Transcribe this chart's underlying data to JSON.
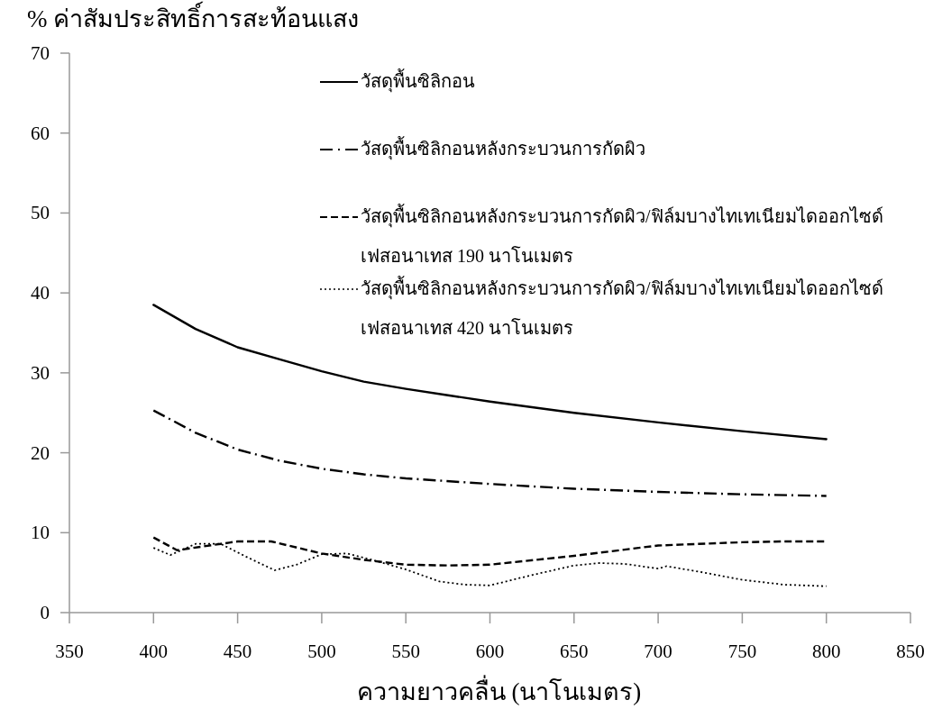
{
  "chart_data": {
    "type": "line",
    "ylabel": "% ค่าสัมประสิทธิ์การสะท้อนแสง",
    "xlabel": "ความยาวคลื่น (นาโนเมตร)",
    "xlim": [
      350,
      850
    ],
    "xticks": [
      350,
      400,
      450,
      500,
      550,
      600,
      650,
      700,
      750,
      800,
      850
    ],
    "ylim": [
      0,
      70
    ],
    "yticks": [
      0,
      10,
      20,
      30,
      40,
      50,
      60,
      70
    ],
    "grid": false,
    "legend": "top right",
    "marker": "none",
    "series": [
      {
        "name": "วัสดุพื้นซิลิกอน",
        "color": "#000000",
        "line_style": "solid",
        "x": [
          400,
          425,
          450,
          475,
          500,
          525,
          550,
          575,
          600,
          650,
          700,
          750,
          800
        ],
        "values": [
          38.5,
          35.5,
          33.2,
          31.7,
          30.2,
          28.9,
          28.0,
          27.2,
          26.4,
          25.0,
          23.8,
          22.7,
          21.7
        ]
      },
      {
        "name": "วัสดุพื้นซิลิกอนหลังกระบวนการกัดผิว",
        "color": "#000000",
        "line_style": "dashdot",
        "x": [
          400,
          425,
          450,
          475,
          500,
          525,
          550,
          600,
          650,
          700,
          750,
          800
        ],
        "values": [
          25.3,
          22.5,
          20.4,
          19.0,
          18.0,
          17.3,
          16.8,
          16.1,
          15.5,
          15.1,
          14.8,
          14.6
        ]
      },
      {
        "name": "วัสดุพื้นซิลิกอนหลังกระบวนการกัดผิว/ฟิล์มบางไทเทเนียมไดออกไซด์ เฟสอนาเทส 190 นาโนเมตร",
        "color": "#000000",
        "line_style": "dashed",
        "x": [
          400,
          414,
          440,
          450,
          470,
          500,
          525,
          550,
          575,
          600,
          650,
          700,
          750,
          775,
          800
        ],
        "values": [
          9.4,
          7.8,
          8.6,
          8.9,
          8.9,
          7.4,
          6.6,
          6.0,
          5.9,
          6.0,
          7.1,
          8.4,
          8.8,
          8.9,
          8.9
        ]
      },
      {
        "name": "วัสดุพื้นซิลิกอนหลังกระบวนการกัดผิว/ฟิล์มบางไทเทเนียมไดออกไซด์ เฟสอนาเทส 420 นาโนเมตร",
        "color": "#000000",
        "line_style": "dotted",
        "x": [
          400,
          410,
          425,
          440,
          455,
          472,
          485,
          500,
          515,
          530,
          550,
          570,
          585,
          600,
          625,
          650,
          665,
          680,
          700,
          705,
          725,
          750,
          775,
          800
        ],
        "values": [
          8.1,
          7.2,
          8.6,
          8.6,
          7.0,
          5.3,
          6.0,
          7.3,
          7.4,
          6.6,
          5.4,
          3.9,
          3.5,
          3.4,
          4.7,
          5.9,
          6.2,
          6.1,
          5.5,
          5.8,
          5.1,
          4.1,
          3.5,
          3.3
        ]
      }
    ]
  }
}
